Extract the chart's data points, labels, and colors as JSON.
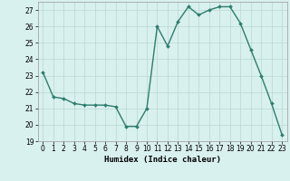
{
  "x": [
    0,
    1,
    2,
    3,
    4,
    5,
    6,
    7,
    8,
    9,
    10,
    11,
    12,
    13,
    14,
    15,
    16,
    17,
    18,
    19,
    20,
    21,
    22,
    23
  ],
  "y": [
    23.2,
    21.7,
    21.6,
    21.3,
    21.2,
    21.2,
    21.2,
    21.1,
    19.9,
    19.9,
    21.0,
    26.0,
    24.8,
    26.3,
    27.2,
    26.7,
    27.0,
    27.2,
    27.2,
    26.2,
    24.6,
    23.0,
    21.3,
    19.4
  ],
  "line_color": "#2d7d6e",
  "marker_color": "#2d7d6e",
  "bg_color": "#d8f0ee",
  "grid_major_color": "#b8d8d4",
  "grid_minor_color": "#c8e8e4",
  "xlabel": "Humidex (Indice chaleur)",
  "ylim": [
    19,
    27.5
  ],
  "xlim": [
    -0.5,
    23.5
  ],
  "yticks": [
    19,
    20,
    21,
    22,
    23,
    24,
    25,
    26,
    27
  ],
  "xticks": [
    0,
    1,
    2,
    3,
    4,
    5,
    6,
    7,
    8,
    9,
    10,
    11,
    12,
    13,
    14,
    15,
    16,
    17,
    18,
    19,
    20,
    21,
    22,
    23
  ],
  "tick_fontsize": 5.5,
  "xlabel_fontsize": 6.5,
  "line_width": 1.0,
  "marker_size": 2.0
}
